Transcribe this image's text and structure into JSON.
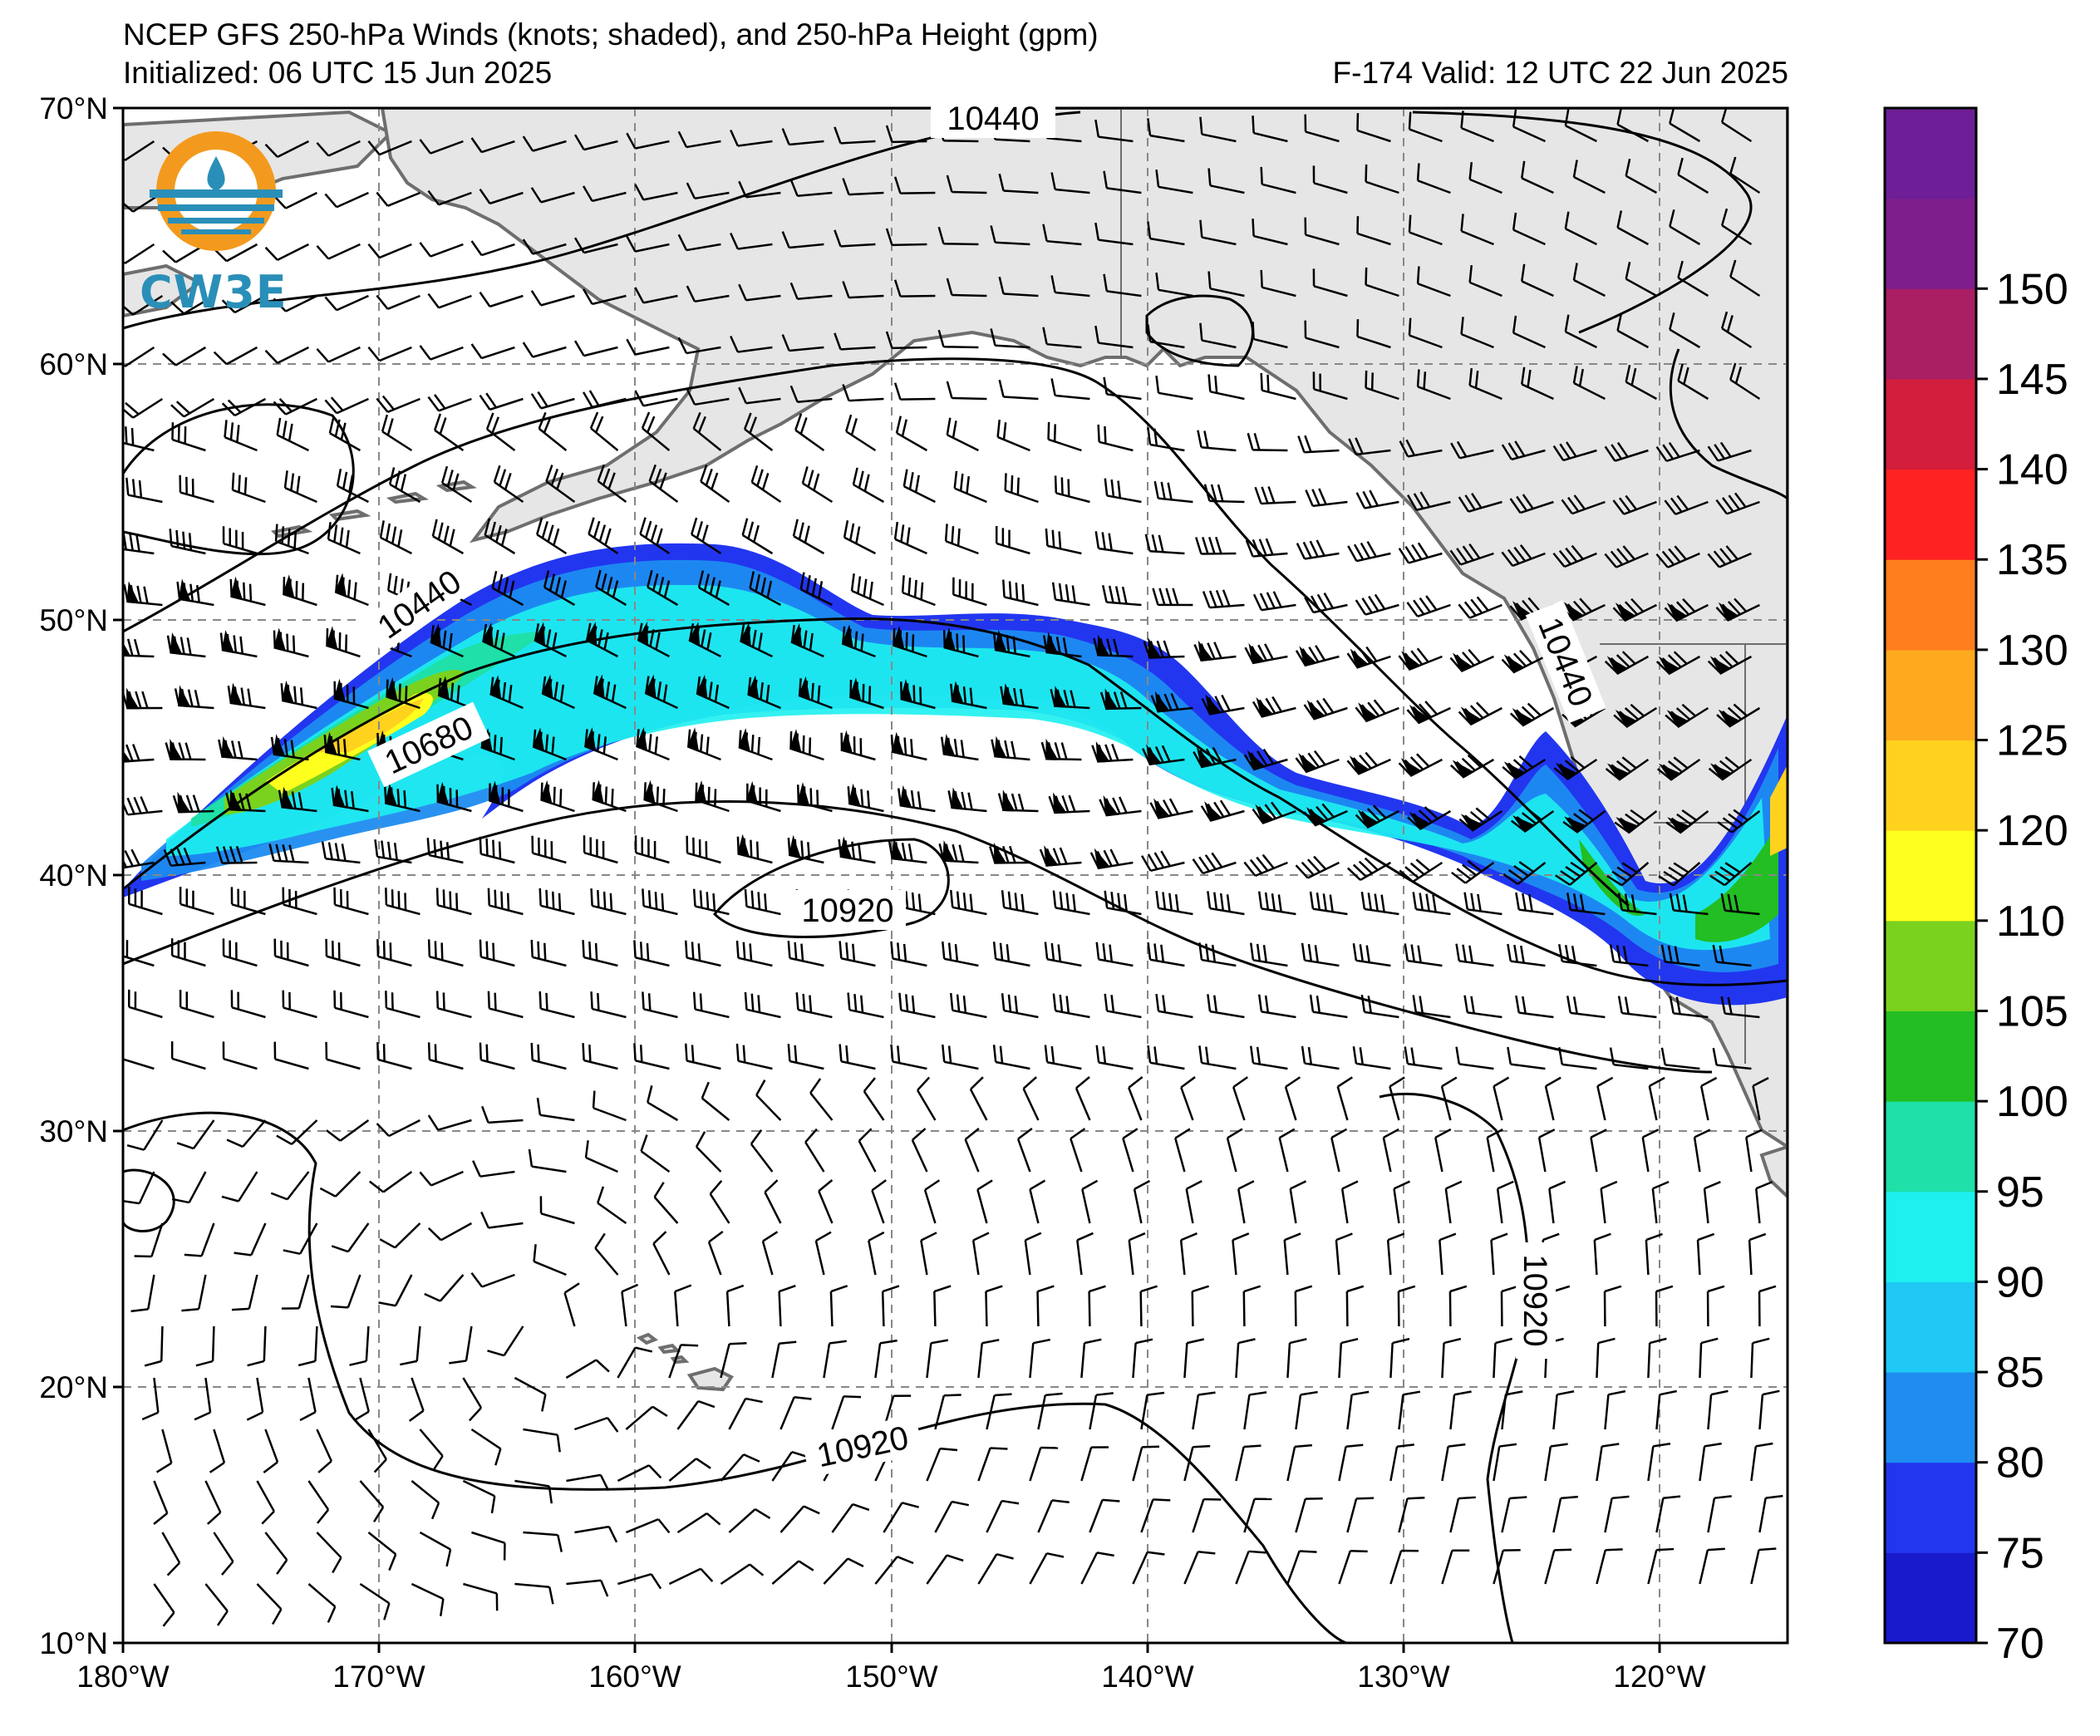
{
  "title": {
    "line1": "NCEP GFS 250-hPa Winds (knots; shaded), and 250-hPa Height (gpm)",
    "line2": "Initialized: 06 UTC 15 Jun 2025",
    "valid": "F-174  Valid: 12 UTC 22 Jun 2025"
  },
  "logo": {
    "text": "CW3E",
    "icon": "cw3e-logo-icon"
  },
  "map": {
    "extent": {
      "lon_min": -180,
      "lon_max": -115,
      "lat_min": 10,
      "lat_max": 70
    },
    "lat_labels": [
      "70°N",
      "60°N",
      "50°N",
      "40°N",
      "30°N",
      "20°N",
      "10°N"
    ],
    "lon_labels": [
      "180°W",
      "170°W",
      "160°W",
      "150°W",
      "140°W",
      "130°W",
      "120°W"
    ],
    "land_color": "#e6e6e6",
    "coast_color": "#6e6e6e",
    "grid": "dashed",
    "contour_labels": [
      "10440",
      "10440",
      "10440",
      "10680",
      "10920",
      "10920",
      "10920"
    ]
  },
  "colorbar": {
    "ticks": [
      "70",
      "75",
      "80",
      "85",
      "90",
      "95",
      "100",
      "105",
      "110",
      "120",
      "125",
      "130",
      "135",
      "140",
      "145",
      "150"
    ],
    "colors": [
      "#1a1acd",
      "#2236f0",
      "#1e8cf0",
      "#20c8f5",
      "#1ef0f0",
      "#1ee0a8",
      "#23be23",
      "#7ad21e",
      "#ffff1e",
      "#ffd21e",
      "#ffaa1e",
      "#ff7e1e",
      "#ff2222",
      "#d21e3c",
      "#aa1e64",
      "#7d1e8c",
      "#6e1e96"
    ]
  }
}
